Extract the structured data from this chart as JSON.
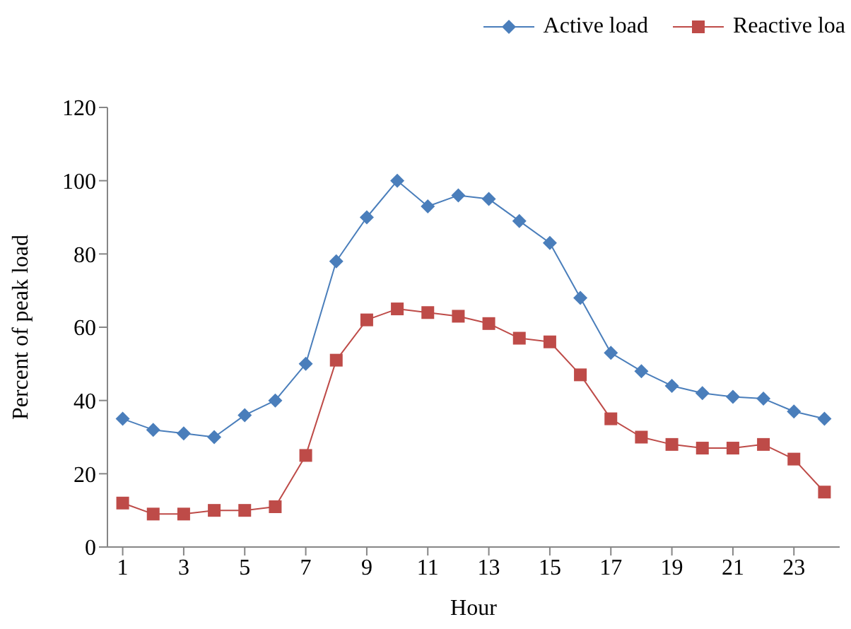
{
  "chart_data": {
    "type": "line",
    "xlabel": "Hour",
    "ylabel": "Percent of peak load",
    "x": [
      1,
      2,
      3,
      4,
      5,
      6,
      7,
      8,
      9,
      10,
      11,
      12,
      13,
      14,
      15,
      16,
      17,
      18,
      19,
      20,
      21,
      22,
      23,
      24
    ],
    "xlim": [
      0.5,
      24.5
    ],
    "xticks": [
      1,
      3,
      5,
      7,
      9,
      11,
      13,
      15,
      17,
      19,
      21,
      23
    ],
    "series": [
      {
        "name": "Active load",
        "color": "#4a7ebb",
        "marker": "diamond",
        "values": [
          35,
          32,
          31,
          30,
          36,
          40,
          50,
          78,
          90,
          100,
          93,
          96,
          95,
          89,
          83,
          68,
          53,
          48,
          44,
          42,
          41,
          40.5,
          37,
          35
        ]
      },
      {
        "name": "Reactive loa",
        "color": "#be4b48",
        "marker": "square",
        "values": [
          12,
          9,
          9,
          10,
          10,
          11,
          25,
          51,
          62,
          65,
          64,
          63,
          61,
          57,
          56,
          47,
          35,
          30,
          28,
          27,
          27,
          28,
          24,
          15
        ]
      }
    ],
    "ylim": [
      0,
      120
    ],
    "yticks": [
      0,
      20,
      40,
      60,
      80,
      100,
      120
    ],
    "grid": false,
    "legend": "top right",
    "line_style": "solid"
  }
}
